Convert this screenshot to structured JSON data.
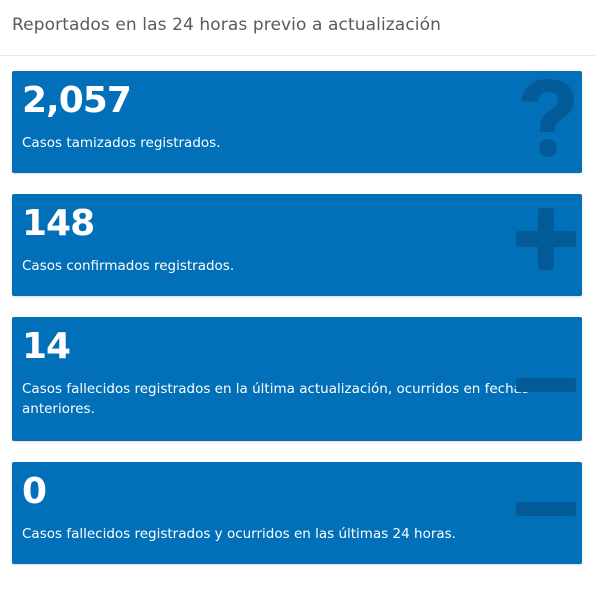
{
  "header": {
    "title": "Reportados en las 24 horas previo a actualización"
  },
  "cards": [
    {
      "value": "2,057",
      "description": "Casos tamizados registrados.",
      "icon": "question-icon"
    },
    {
      "value": "148",
      "description": "Casos confirmados registrados.",
      "icon": "plus-icon"
    },
    {
      "value": "14",
      "description": "Casos fallecidos registrados en la última actualización, ocurridos en fechas anteriores.",
      "icon": "minus-icon"
    },
    {
      "value": "0",
      "description": "Casos fallecidos registrados y ocurridos en las últimas 24 horas.",
      "icon": "minus-icon"
    }
  ],
  "colors": {
    "card_background": "#0170b9",
    "icon_color": "#025a96",
    "text_on_card": "#ffffff",
    "header_text": "#5a5a5a"
  }
}
